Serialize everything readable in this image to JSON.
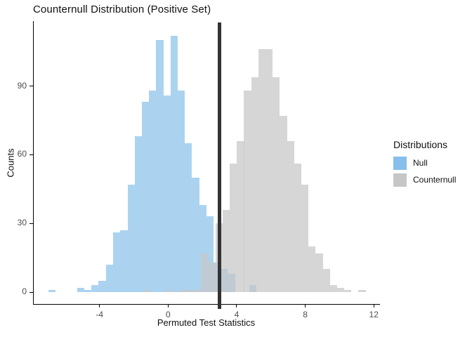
{
  "chart_data": {
    "type": "bar",
    "subtype": "histogram-overlay",
    "title": "Counternull Distribution (Positive Set)",
    "xlabel": "Permuted Test Statistics",
    "ylabel": "Counts",
    "x_ticks": [
      -4,
      0,
      4,
      8,
      12
    ],
    "y_ticks": [
      0,
      30,
      60,
      90
    ],
    "xlim": [
      -7.84,
      12.36
    ],
    "ylim": [
      -5.2,
      118.4
    ],
    "grid": "off",
    "binwidth": 0.42,
    "vline_x": 3.0,
    "legend": {
      "title": "Distributions",
      "position": "right",
      "items": [
        {
          "label": "Null",
          "color": "#87BEEB"
        },
        {
          "label": "Counternull",
          "color": "#C6C6C6"
        }
      ]
    },
    "series": [
      {
        "name": "Null",
        "fill": "#ABD3F0",
        "bars": [
          {
            "x": -6.99,
            "count": 1
          },
          {
            "x": -5.3,
            "count": 2
          },
          {
            "x": -4.88,
            "count": 1
          },
          {
            "x": -4.46,
            "count": 3
          },
          {
            "x": -4.05,
            "count": 5
          },
          {
            "x": -3.63,
            "count": 12
          },
          {
            "x": -3.21,
            "count": 26
          },
          {
            "x": -2.79,
            "count": 27
          },
          {
            "x": -2.37,
            "count": 47
          },
          {
            "x": -1.96,
            "count": 68
          },
          {
            "x": -1.54,
            "count": 83
          },
          {
            "x": -1.12,
            "count": 88
          },
          {
            "x": -0.7,
            "count": 110
          },
          {
            "x": -0.28,
            "count": 86
          },
          {
            "x": 0.14,
            "count": 112
          },
          {
            "x": 0.55,
            "count": 88
          },
          {
            "x": 0.97,
            "count": 65
          },
          {
            "x": 1.39,
            "count": 50
          },
          {
            "x": 1.81,
            "count": 38
          },
          {
            "x": 2.23,
            "count": 33
          },
          {
            "x": 2.64,
            "count": 13
          },
          {
            "x": 3.06,
            "count": 10
          },
          {
            "x": 3.48,
            "count": 8
          },
          {
            "x": 4.73,
            "count": 3
          }
        ]
      },
      {
        "name": "Counternull",
        "fill": "rgba(198,198,198,0.72)",
        "bars": [
          {
            "x": -1.41,
            "count": 1
          },
          {
            "x": -0.16,
            "count": 1
          },
          {
            "x": 0.68,
            "count": 1
          },
          {
            "x": 1.09,
            "count": 1
          },
          {
            "x": 1.51,
            "count": 1
          },
          {
            "x": 1.93,
            "count": 17
          },
          {
            "x": 2.35,
            "count": 13
          },
          {
            "x": 2.77,
            "count": 30
          },
          {
            "x": 3.18,
            "count": 36
          },
          {
            "x": 3.6,
            "count": 56
          },
          {
            "x": 4.02,
            "count": 66
          },
          {
            "x": 4.43,
            "count": 88
          },
          {
            "x": 4.85,
            "count": 94
          },
          {
            "x": 5.27,
            "count": 106
          },
          {
            "x": 5.69,
            "count": 106
          },
          {
            "x": 6.1,
            "count": 94
          },
          {
            "x": 6.52,
            "count": 77
          },
          {
            "x": 6.94,
            "count": 66
          },
          {
            "x": 7.36,
            "count": 56
          },
          {
            "x": 7.77,
            "count": 47
          },
          {
            "x": 8.19,
            "count": 20
          },
          {
            "x": 8.61,
            "count": 17
          },
          {
            "x": 9.03,
            "count": 10
          },
          {
            "x": 9.44,
            "count": 3
          },
          {
            "x": 9.86,
            "count": 2
          },
          {
            "x": 10.28,
            "count": 1
          },
          {
            "x": 11.11,
            "count": 1
          }
        ]
      }
    ],
    "colors": {
      "vline": "#333333",
      "axis_line": "#000000",
      "tick_text": "#4D4D4D",
      "background": "#FFFFFF"
    }
  }
}
